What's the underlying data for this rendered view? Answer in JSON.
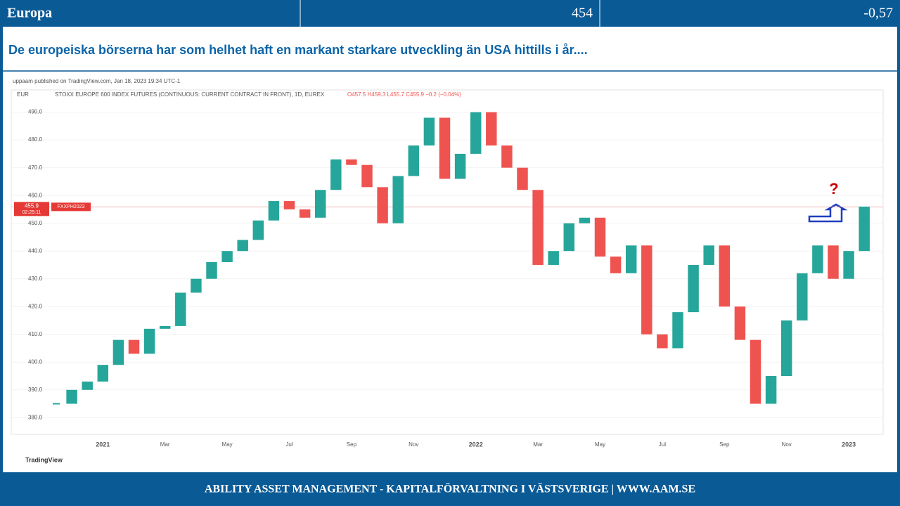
{
  "header": {
    "title": "Europa",
    "value": "454",
    "change": "-0,57"
  },
  "subtitle": "De europeiska börserna har som helhet haft en markant starkare utveckling än USA hittills i år....",
  "footer": "ABILITY ASSET MANAGEMENT -  KAPITALFÖRVALTNING I VÄSTSVERIGE   |   WWW.AAM.SE",
  "chart_data": {
    "type": "candlestick",
    "published": "uppaam published on TradingView.com, Jan 18, 2023 19:34 UTC-1",
    "currency": "EUR",
    "title": "STOXX EUROPE 600 INDEX FUTURES (CONTINUOUS: CURRENT CONTRACT IN FRONT), 1D, EUREX",
    "ohlc_text": "O457.5 H459.3 L455.7 C455.9 −0.2 (−0.04%)",
    "last_price": {
      "value": 455.9,
      "label": "455.9"
    },
    "countdown": "02:25:11",
    "symbol": "FXXPH2023",
    "annotation": "?",
    "brand": "TradingView",
    "categories": [
      null,
      null,
      null,
      "2021",
      null,
      null,
      null,
      "Mar",
      null,
      null,
      null,
      "May",
      null,
      null,
      null,
      "Jul",
      null,
      null,
      null,
      "Sep",
      null,
      null,
      null,
      "Nov",
      null,
      null,
      null,
      "2022",
      null,
      null,
      null,
      "Mar",
      null,
      null,
      null,
      "May",
      null,
      null,
      null,
      "Jul",
      null,
      null,
      null,
      "Sep",
      null,
      null,
      null,
      "Nov",
      null,
      null,
      null,
      "2023",
      null
    ],
    "values": [
      385,
      390,
      393,
      399,
      408,
      403,
      412,
      413,
      425,
      430,
      436,
      440,
      444,
      451,
      458,
      455,
      452,
      462,
      473,
      471,
      463,
      450,
      467,
      478,
      488,
      466,
      475,
      490,
      478,
      470,
      462,
      435,
      440,
      450,
      452,
      438,
      432,
      442,
      410,
      405,
      418,
      435,
      442,
      420,
      408,
      385,
      395,
      415,
      432,
      442,
      430,
      440,
      456
    ],
    "up_color": "#26a69a",
    "down_color": "#ef5350",
    "ylim": [
      374,
      498
    ],
    "yticks": [
      {
        "value": 380,
        "label": "380.0"
      },
      {
        "value": 390,
        "label": "390.0"
      },
      {
        "value": 400,
        "label": "400.0"
      },
      {
        "value": 410,
        "label": "410.0"
      },
      {
        "value": 420,
        "label": "420.0"
      },
      {
        "value": 430,
        "label": "430.0"
      },
      {
        "value": 440,
        "label": "440.0"
      },
      {
        "value": 450,
        "label": "450.0"
      },
      {
        "value": 460,
        "label": "460.0"
      },
      {
        "value": 470,
        "label": "470.0"
      },
      {
        "value": 480,
        "label": "480.0"
      },
      {
        "value": 490,
        "label": "490.0"
      }
    ],
    "grid": true
  }
}
